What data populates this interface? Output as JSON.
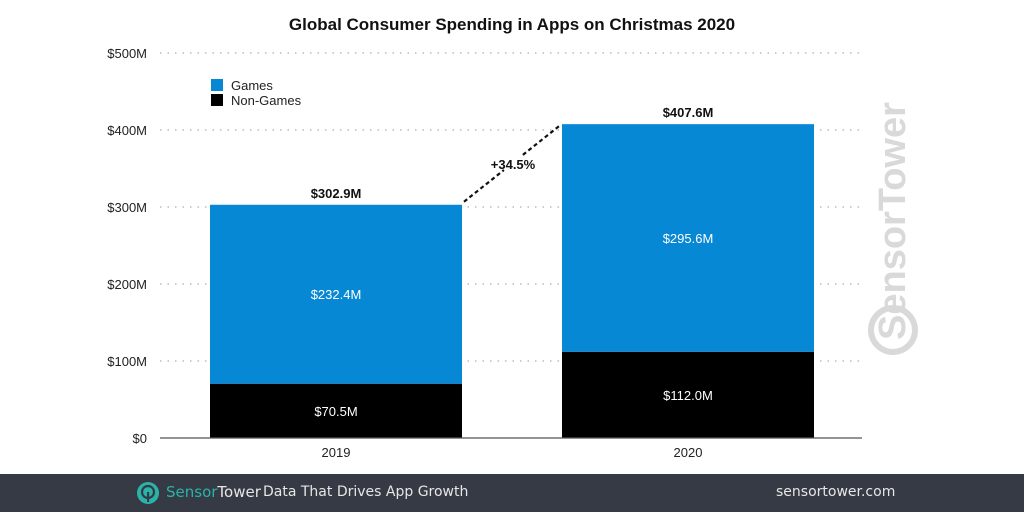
{
  "chart_data": {
    "type": "bar",
    "stacked": true,
    "title": "Global Consumer Spending in Apps on Christmas 2020",
    "xlabel": "",
    "ylabel": "",
    "categories": [
      "2019",
      "2020"
    ],
    "series": [
      {
        "name": "Non-Games",
        "color": "#000000",
        "values": [
          70.5,
          112.0
        ],
        "labels": [
          "$70.5M",
          "$112.0M"
        ]
      },
      {
        "name": "Games",
        "color": "#0788d4",
        "values": [
          232.4,
          295.6
        ],
        "labels": [
          "$232.4M",
          "$295.6M"
        ]
      }
    ],
    "totals": [
      302.9,
      407.6
    ],
    "total_labels": [
      "$302.9M",
      "$407.6M"
    ],
    "growth_annotation": "+34.5%",
    "ylim": [
      0,
      500
    ],
    "yticks": [
      0,
      100,
      200,
      300,
      400,
      500
    ],
    "ytick_labels": [
      "$0",
      "$100M",
      "$200M",
      "$300M",
      "$400M",
      "$500M"
    ],
    "grid": true,
    "legend": {
      "placement": "top-left",
      "entries": [
        {
          "label": "Games",
          "color": "#0788d4"
        },
        {
          "label": "Non-Games",
          "color": "#000000"
        }
      ]
    },
    "watermark": "SensorTower"
  },
  "footer": {
    "brand_sensor": "Sensor",
    "brand_tower": "Tower",
    "tagline": "Data That Drives App Growth",
    "website": "sensortower.com",
    "logo_icon": "sensortower-logo-icon",
    "brand_color": "#2ab4a8",
    "background": "#353a44"
  }
}
